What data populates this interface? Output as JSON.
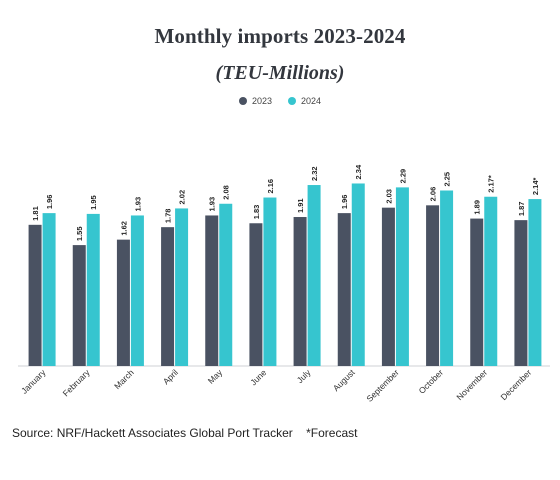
{
  "title": "Monthly imports 2023-2024",
  "subtitle": "(TEU-Millions)",
  "colors": {
    "s2023": "#4a5262",
    "s2024": "#36c5cf"
  },
  "source": "Source: NRF/Hackett Associates Global Port Tracker",
  "footnote": "*Forecast",
  "chart_data": {
    "type": "bar",
    "title": "Monthly imports 2023-2024",
    "subtitle": "(TEU-Millions)",
    "xlabel": "",
    "ylabel": "",
    "ylim": [
      0,
      2.5
    ],
    "grid": false,
    "legend": "top-center",
    "categories": [
      "January",
      "February",
      "March",
      "April",
      "May",
      "June",
      "July",
      "August",
      "September",
      "October",
      "November",
      "December"
    ],
    "series": [
      {
        "name": "2023",
        "values": [
          1.81,
          1.55,
          1.62,
          1.78,
          1.93,
          1.83,
          1.91,
          1.96,
          2.03,
          2.06,
          1.89,
          1.87
        ],
        "labels": [
          "1.81",
          "1.55",
          "1.62",
          "1.78",
          "1.93",
          "1.83",
          "1.91",
          "1.96",
          "2.03",
          "2.06",
          "1.89",
          "1.87"
        ]
      },
      {
        "name": "2024",
        "values": [
          1.96,
          1.95,
          1.93,
          2.02,
          2.08,
          2.16,
          2.32,
          2.34,
          2.29,
          2.25,
          2.17,
          2.14
        ],
        "labels": [
          "1.96",
          "1.95",
          "1.93",
          "2.02",
          "2.08",
          "2.16",
          "2.32",
          "2.34",
          "2.29",
          "2.25",
          "2.17*",
          "2.14*"
        ]
      }
    ]
  }
}
